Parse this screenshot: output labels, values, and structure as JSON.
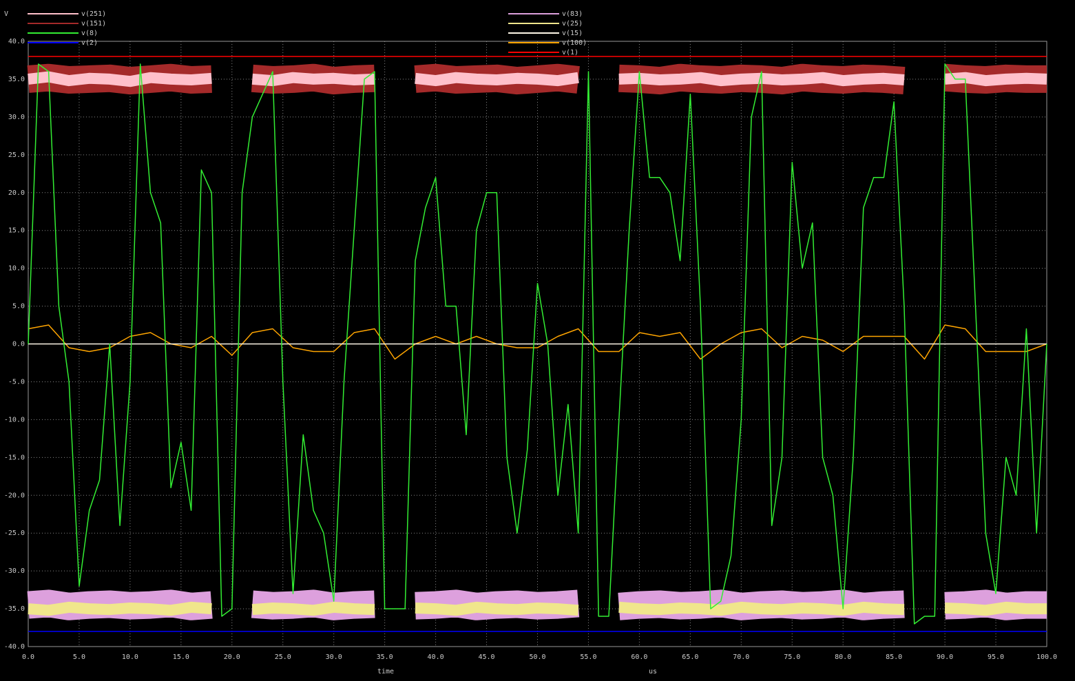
{
  "chart_data": {
    "type": "line",
    "y_label": "V",
    "x_label": "time",
    "x_unit": "us",
    "xlim": [
      0,
      100
    ],
    "ylim": [
      -40,
      40
    ],
    "grid": true,
    "xticks": [
      {
        "value": 0,
        "label": "0.0"
      },
      {
        "value": 5,
        "label": "5.0"
      },
      {
        "value": 10,
        "label": "10.0"
      },
      {
        "value": 15,
        "label": "15.0"
      },
      {
        "value": 20,
        "label": "20.0"
      },
      {
        "value": 25,
        "label": "25.0"
      },
      {
        "value": 30,
        "label": "30.0"
      },
      {
        "value": 35,
        "label": "35.0"
      },
      {
        "value": 40,
        "label": "40.0"
      },
      {
        "value": 45,
        "label": "45.0"
      },
      {
        "value": 50,
        "label": "50.0"
      },
      {
        "value": 55,
        "label": "55.0"
      },
      {
        "value": 60,
        "label": "60.0"
      },
      {
        "value": 65,
        "label": "65.0"
      },
      {
        "value": 70,
        "label": "70.0"
      },
      {
        "value": 75,
        "label": "75.0"
      },
      {
        "value": 80,
        "label": "80.0"
      },
      {
        "value": 85,
        "label": "85.0"
      },
      {
        "value": 90,
        "label": "90.0"
      },
      {
        "value": 95,
        "label": "95.0"
      },
      {
        "value": 100,
        "label": "100.0"
      }
    ],
    "yticks": [
      {
        "value": -40,
        "label": "-40.0"
      },
      {
        "value": -35,
        "label": "-35.0"
      },
      {
        "value": -30,
        "label": "-30.0"
      },
      {
        "value": -25,
        "label": "-25.0"
      },
      {
        "value": -20,
        "label": "-20.0"
      },
      {
        "value": -15,
        "label": "-15.0"
      },
      {
        "value": -10,
        "label": "-10.0"
      },
      {
        "value": -5,
        "label": "-5.0"
      },
      {
        "value": 0,
        "label": "0.0"
      },
      {
        "value": 5,
        "label": "5.0"
      },
      {
        "value": 10,
        "label": "10.0"
      },
      {
        "value": 15,
        "label": "15.0"
      },
      {
        "value": 20,
        "label": "20.0"
      },
      {
        "value": 25,
        "label": "25.0"
      },
      {
        "value": 30,
        "label": "30.0"
      },
      {
        "value": 35,
        "label": "35.0"
      },
      {
        "value": 40,
        "label": "40.0"
      }
    ],
    "series": [
      {
        "name": "v(251)",
        "color": "#ffc0cb",
        "line_width": 16,
        "x": [
          0,
          2,
          4,
          6,
          8,
          10,
          12,
          14,
          16,
          18,
          20,
          22,
          24,
          26,
          28,
          30,
          32,
          34,
          36,
          38,
          40,
          42,
          44,
          46,
          48,
          50,
          52,
          54,
          56,
          58,
          60,
          62,
          64,
          66,
          68,
          70,
          72,
          74,
          76,
          78,
          80,
          82,
          84,
          86,
          88,
          90,
          92,
          94,
          96,
          98,
          100
        ],
        "values": [
          35,
          35.3,
          34.8,
          35.1,
          35,
          34.7,
          35.2,
          35,
          34.9,
          35.1,
          null,
          35,
          34.8,
          35.2,
          35,
          35.1,
          34.9,
          35,
          null,
          35.1,
          34.8,
          35.2,
          35,
          34.9,
          35.1,
          35,
          34.8,
          35.2,
          null,
          35,
          35.1,
          34.9,
          35,
          35.2,
          34.8,
          35,
          35.1,
          34.9,
          35,
          35.2,
          34.8,
          35,
          35.1,
          34.9,
          null,
          35,
          35.2,
          34.8,
          35,
          35.1,
          35
        ]
      },
      {
        "name": "v(151)",
        "color": "#a52a2a",
        "line_width": 40,
        "x": [
          0,
          2,
          4,
          6,
          8,
          10,
          12,
          14,
          16,
          18,
          20,
          22,
          24,
          26,
          28,
          30,
          32,
          34,
          36,
          38,
          40,
          42,
          44,
          46,
          48,
          50,
          52,
          54,
          56,
          58,
          60,
          62,
          64,
          66,
          68,
          70,
          72,
          74,
          76,
          78,
          80,
          82,
          84,
          86,
          88,
          90,
          92,
          94,
          96,
          98,
          100
        ],
        "values": [
          35,
          35.2,
          34.9,
          35,
          35.1,
          34.8,
          35,
          35.2,
          34.9,
          35,
          null,
          35.1,
          34.9,
          35,
          35.2,
          34.8,
          35,
          35.1,
          null,
          35,
          35.2,
          34.9,
          35,
          35.1,
          34.8,
          35,
          35.2,
          34.9,
          null,
          35.1,
          35,
          34.8,
          35.2,
          35,
          34.9,
          35.1,
          35,
          34.8,
          35.2,
          35,
          34.9,
          35.1,
          35,
          34.8,
          null,
          35.2,
          35,
          34.9,
          35.1,
          35,
          35
        ]
      },
      {
        "name": "v(8)",
        "color": "#33ee33",
        "line_width": 1.5,
        "x": [
          0,
          1,
          2,
          3,
          4,
          5,
          6,
          7,
          8,
          9,
          10,
          11,
          12,
          13,
          14,
          15,
          16,
          17,
          18,
          19,
          20,
          21,
          22,
          23,
          24,
          25,
          26,
          27,
          28,
          29,
          30,
          31,
          32,
          33,
          34,
          35,
          36,
          37,
          38,
          39,
          40,
          41,
          42,
          43,
          44,
          45,
          46,
          47,
          48,
          49,
          50,
          51,
          52,
          53,
          54,
          55,
          56,
          57,
          58,
          59,
          60,
          61,
          62,
          63,
          64,
          65,
          66,
          67,
          68,
          69,
          70,
          71,
          72,
          73,
          74,
          75,
          76,
          77,
          78,
          79,
          80,
          81,
          82,
          83,
          84,
          85,
          86,
          87,
          88,
          89,
          90,
          91,
          92,
          93,
          94,
          95,
          96,
          97,
          98,
          99,
          100
        ],
        "values": [
          0,
          37,
          36,
          5,
          -5,
          -32,
          -22,
          -18,
          0,
          -24,
          -5,
          37,
          20,
          16,
          -19,
          -13,
          -22,
          23,
          20,
          -36,
          -35,
          20,
          30,
          33,
          36,
          -5,
          -33,
          -12,
          -22,
          -25,
          -34,
          -5,
          15,
          35,
          36,
          -35,
          -35,
          -35,
          11,
          18,
          22,
          5,
          5,
          -12,
          15,
          20,
          20,
          -15,
          -25,
          -14,
          8,
          0,
          -20,
          -8,
          -25,
          36,
          -36,
          -36,
          -10,
          15,
          36,
          22,
          22,
          20,
          11,
          33,
          5,
          -35,
          -34,
          -28,
          -10,
          30,
          36,
          -24,
          -15,
          24,
          10,
          16,
          -15,
          -20,
          -35,
          -15,
          18,
          22,
          22,
          32,
          5,
          -37,
          -36,
          -36,
          37,
          35,
          35,
          5,
          -25,
          -33,
          -15,
          -20,
          2,
          -25,
          0
        ]
      },
      {
        "name": "v(2)",
        "color": "#0000ff",
        "line_width": 1.5,
        "x": [
          0,
          100
        ],
        "values": [
          -38,
          -38
        ]
      },
      {
        "name": "v(83)",
        "color": "#dda0dd",
        "line_width": 40,
        "x": [
          0,
          2,
          4,
          6,
          8,
          10,
          12,
          14,
          16,
          18,
          20,
          22,
          24,
          26,
          28,
          30,
          32,
          34,
          36,
          38,
          40,
          42,
          44,
          46,
          48,
          50,
          52,
          54,
          56,
          58,
          60,
          62,
          64,
          66,
          68,
          70,
          72,
          74,
          76,
          78,
          80,
          82,
          84,
          86,
          88,
          90,
          92,
          94,
          96,
          98,
          100
        ],
        "values": [
          -34.5,
          -34.3,
          -34.7,
          -34.5,
          -34.4,
          -34.6,
          -34.5,
          -34.3,
          -34.7,
          -34.5,
          null,
          -34.4,
          -34.6,
          -34.5,
          -34.3,
          -34.7,
          -34.5,
          -34.4,
          null,
          -34.6,
          -34.5,
          -34.3,
          -34.7,
          -34.5,
          -34.4,
          -34.6,
          -34.5,
          -34.3,
          null,
          -34.7,
          -34.5,
          -34.4,
          -34.6,
          -34.5,
          -34.3,
          -34.7,
          -34.5,
          -34.4,
          -34.6,
          -34.5,
          -34.3,
          -34.7,
          -34.5,
          -34.4,
          null,
          -34.6,
          -34.5,
          -34.3,
          -34.7,
          -34.5,
          -34.5
        ]
      },
      {
        "name": "v(25)",
        "color": "#f0e68c",
        "line_width": 16,
        "x": [
          0,
          2,
          4,
          6,
          8,
          10,
          12,
          14,
          16,
          18,
          20,
          22,
          24,
          26,
          28,
          30,
          32,
          34,
          36,
          38,
          40,
          42,
          44,
          46,
          48,
          50,
          52,
          54,
          56,
          58,
          60,
          62,
          64,
          66,
          68,
          70,
          72,
          74,
          76,
          78,
          80,
          82,
          84,
          86,
          88,
          90,
          92,
          94,
          96,
          98,
          100
        ],
        "values": [
          -35,
          -35.2,
          -34.8,
          -35,
          -35.1,
          -34.9,
          -35,
          -35.2,
          -34.8,
          -35,
          null,
          -35.1,
          -34.9,
          -35,
          -35.2,
          -34.8,
          -35,
          -35.1,
          null,
          -34.9,
          -35,
          -35.2,
          -34.8,
          -35,
          -35.1,
          -34.9,
          -35,
          -35.2,
          null,
          -34.8,
          -35,
          -35.1,
          -34.9,
          -35,
          -35.2,
          -34.8,
          -35,
          -35.1,
          -34.9,
          -35,
          -35.2,
          -34.8,
          -35,
          -35.1,
          null,
          -34.9,
          -35,
          -35.2,
          -34.8,
          -35,
          -35
        ]
      },
      {
        "name": "v(15)",
        "color": "#fff8e8",
        "line_width": 1.5,
        "x": [
          0,
          100
        ],
        "values": [
          0,
          0
        ]
      },
      {
        "name": "v(100)",
        "color": "#ffa500",
        "line_width": 1.5,
        "x": [
          0,
          2,
          4,
          6,
          8,
          10,
          12,
          14,
          16,
          18,
          20,
          22,
          24,
          26,
          28,
          30,
          32,
          34,
          36,
          38,
          40,
          42,
          44,
          46,
          48,
          50,
          52,
          54,
          56,
          58,
          60,
          62,
          64,
          66,
          68,
          70,
          72,
          74,
          76,
          78,
          80,
          82,
          84,
          86,
          88,
          90,
          92,
          94,
          96,
          98,
          100
        ],
        "values": [
          2,
          2.5,
          -0.5,
          -1,
          -0.5,
          1,
          1.5,
          0,
          -0.5,
          1,
          -1.5,
          1.5,
          2,
          -0.5,
          -1,
          -1,
          1.5,
          2,
          -2,
          0,
          1,
          0,
          1,
          0,
          -0.5,
          -0.5,
          1,
          2,
          -1,
          -1,
          1.5,
          1,
          1.5,
          -2,
          0,
          1.5,
          2,
          -0.5,
          1,
          0.5,
          -1,
          1,
          1,
          1,
          -2,
          2.5,
          2,
          -1,
          -1,
          -1,
          0
        ]
      },
      {
        "name": "v(1)",
        "color": "#ff0000",
        "line_width": 1.5,
        "x": [
          0,
          100
        ],
        "values": [
          38,
          38
        ]
      }
    ]
  }
}
